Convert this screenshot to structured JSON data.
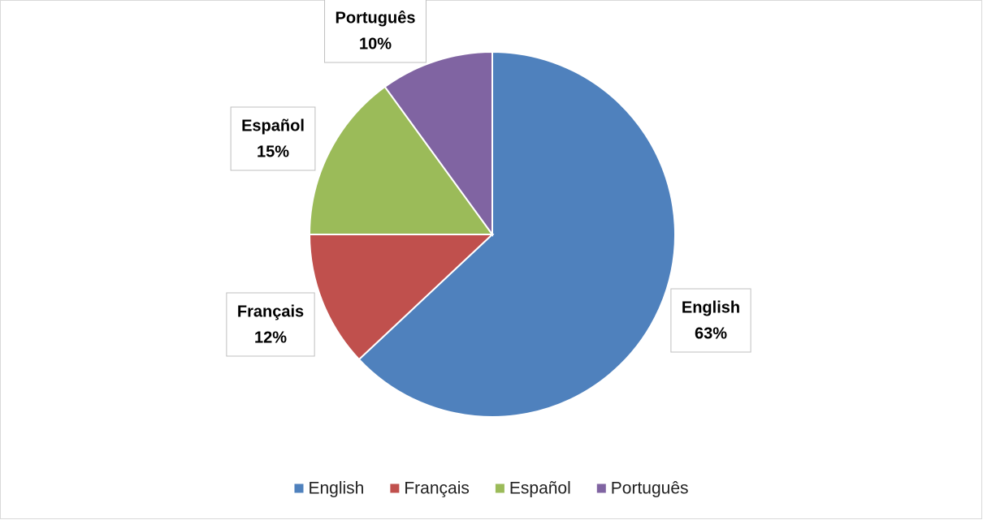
{
  "chart_data": {
    "type": "pie",
    "categories": [
      "English",
      "Français",
      "Español",
      "Português"
    ],
    "values": [
      63,
      12,
      15,
      10
    ],
    "value_labels": [
      "63%",
      "12%",
      "15%",
      "10%"
    ],
    "colors": [
      "#4f81bd",
      "#c0504d",
      "#9bbb59",
      "#8064a2"
    ],
    "legend": "bottom"
  }
}
